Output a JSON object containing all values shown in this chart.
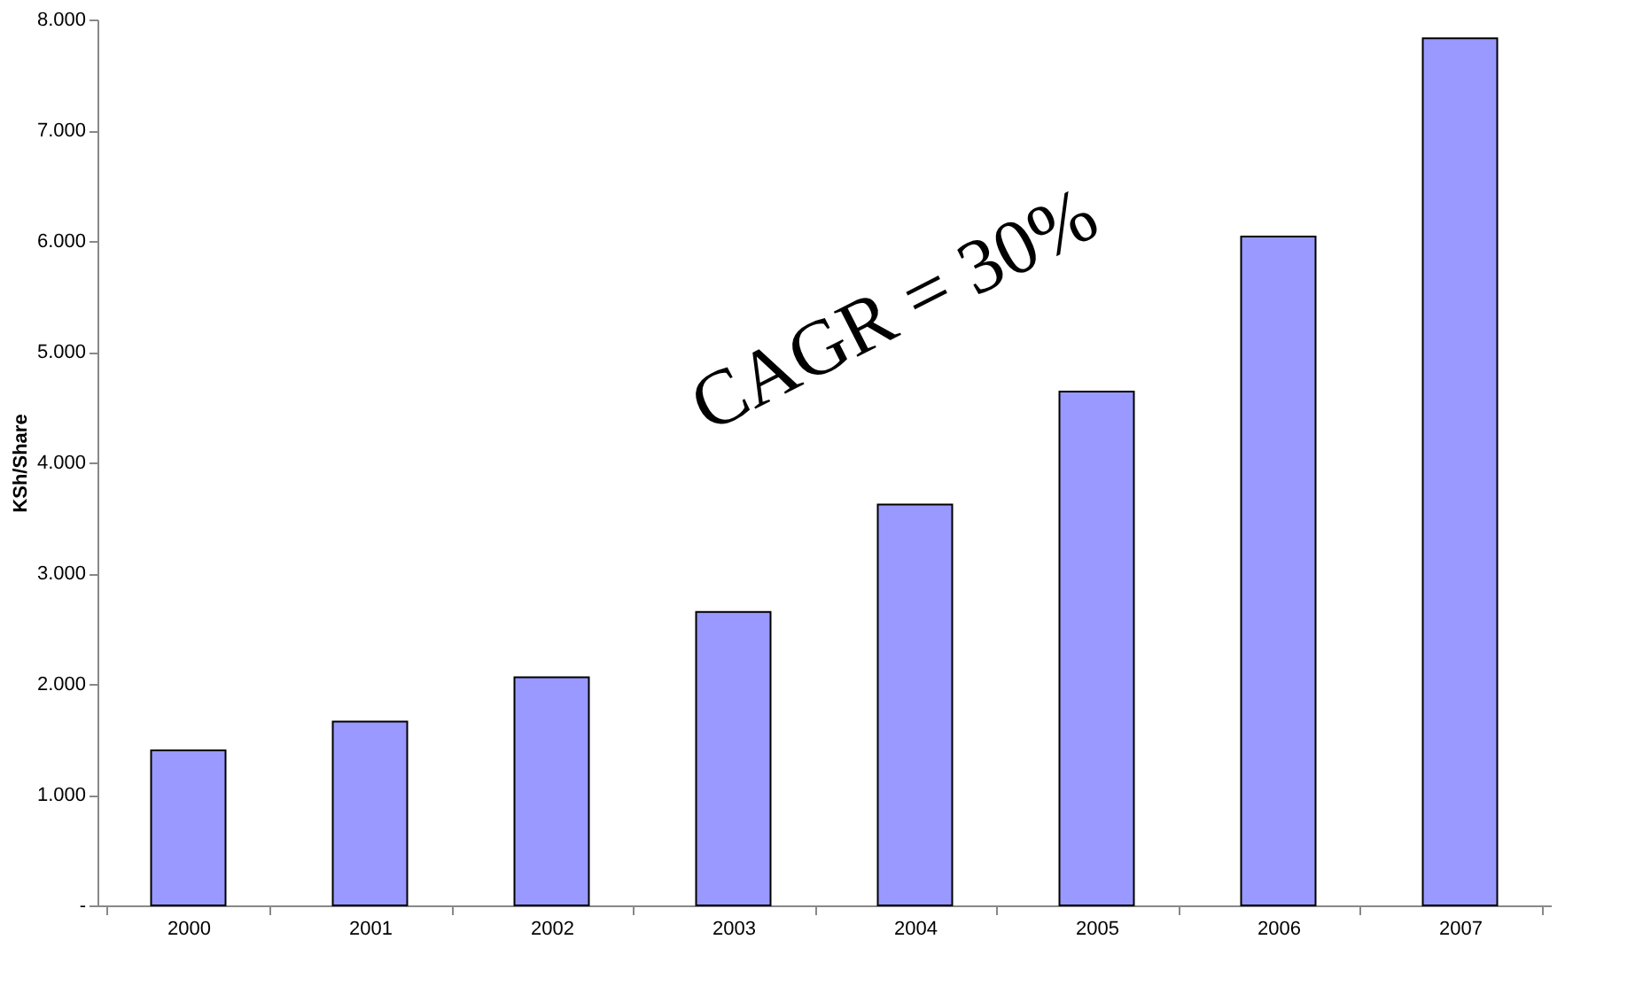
{
  "chart_data": {
    "type": "bar",
    "ylabel": "KSh/Share",
    "categories": [
      "2000",
      "2001",
      "2002",
      "2003",
      "2004",
      "2005",
      "2006",
      "2007"
    ],
    "values": [
      1400,
      1660,
      2060,
      2650,
      3620,
      4640,
      6040,
      7830
    ],
    "color": "#9999ff",
    "ylim": [
      0,
      8000
    ],
    "yticks": [
      {
        "value": 0,
        "label": "-"
      },
      {
        "value": 1000,
        "label": "1.000"
      },
      {
        "value": 2000,
        "label": "2.000"
      },
      {
        "value": 3000,
        "label": "3.000"
      },
      {
        "value": 4000,
        "label": "4.000"
      },
      {
        "value": 5000,
        "label": "5.000"
      },
      {
        "value": 6000,
        "label": "6.000"
      },
      {
        "value": 7000,
        "label": "7.000"
      },
      {
        "value": 8000,
        "label": "8.000"
      }
    ],
    "annotations": [
      "CAGR = 30%"
    ],
    "grid": false
  }
}
